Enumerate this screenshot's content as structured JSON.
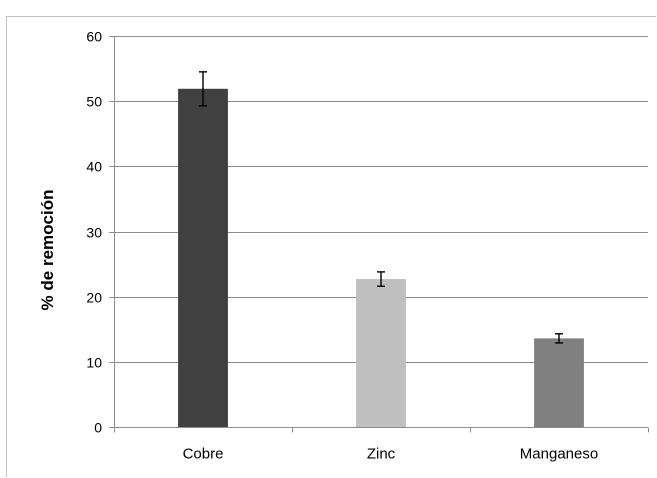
{
  "chart_data": {
    "type": "bar",
    "title": "",
    "xlabel": "",
    "ylabel": "% de remoción",
    "ylim": [
      0,
      60
    ],
    "yticks": [
      0,
      10,
      20,
      30,
      40,
      50,
      60
    ],
    "categories": [
      "Cobre",
      "Zinc",
      "Manganeso"
    ],
    "values": [
      51.9,
      22.7,
      13.6
    ],
    "error": [
      2.6,
      1.1,
      0.7
    ],
    "bar_colors": [
      "#404040",
      "#bfbfbf",
      "#808080"
    ],
    "grid": true,
    "legend": "none"
  }
}
